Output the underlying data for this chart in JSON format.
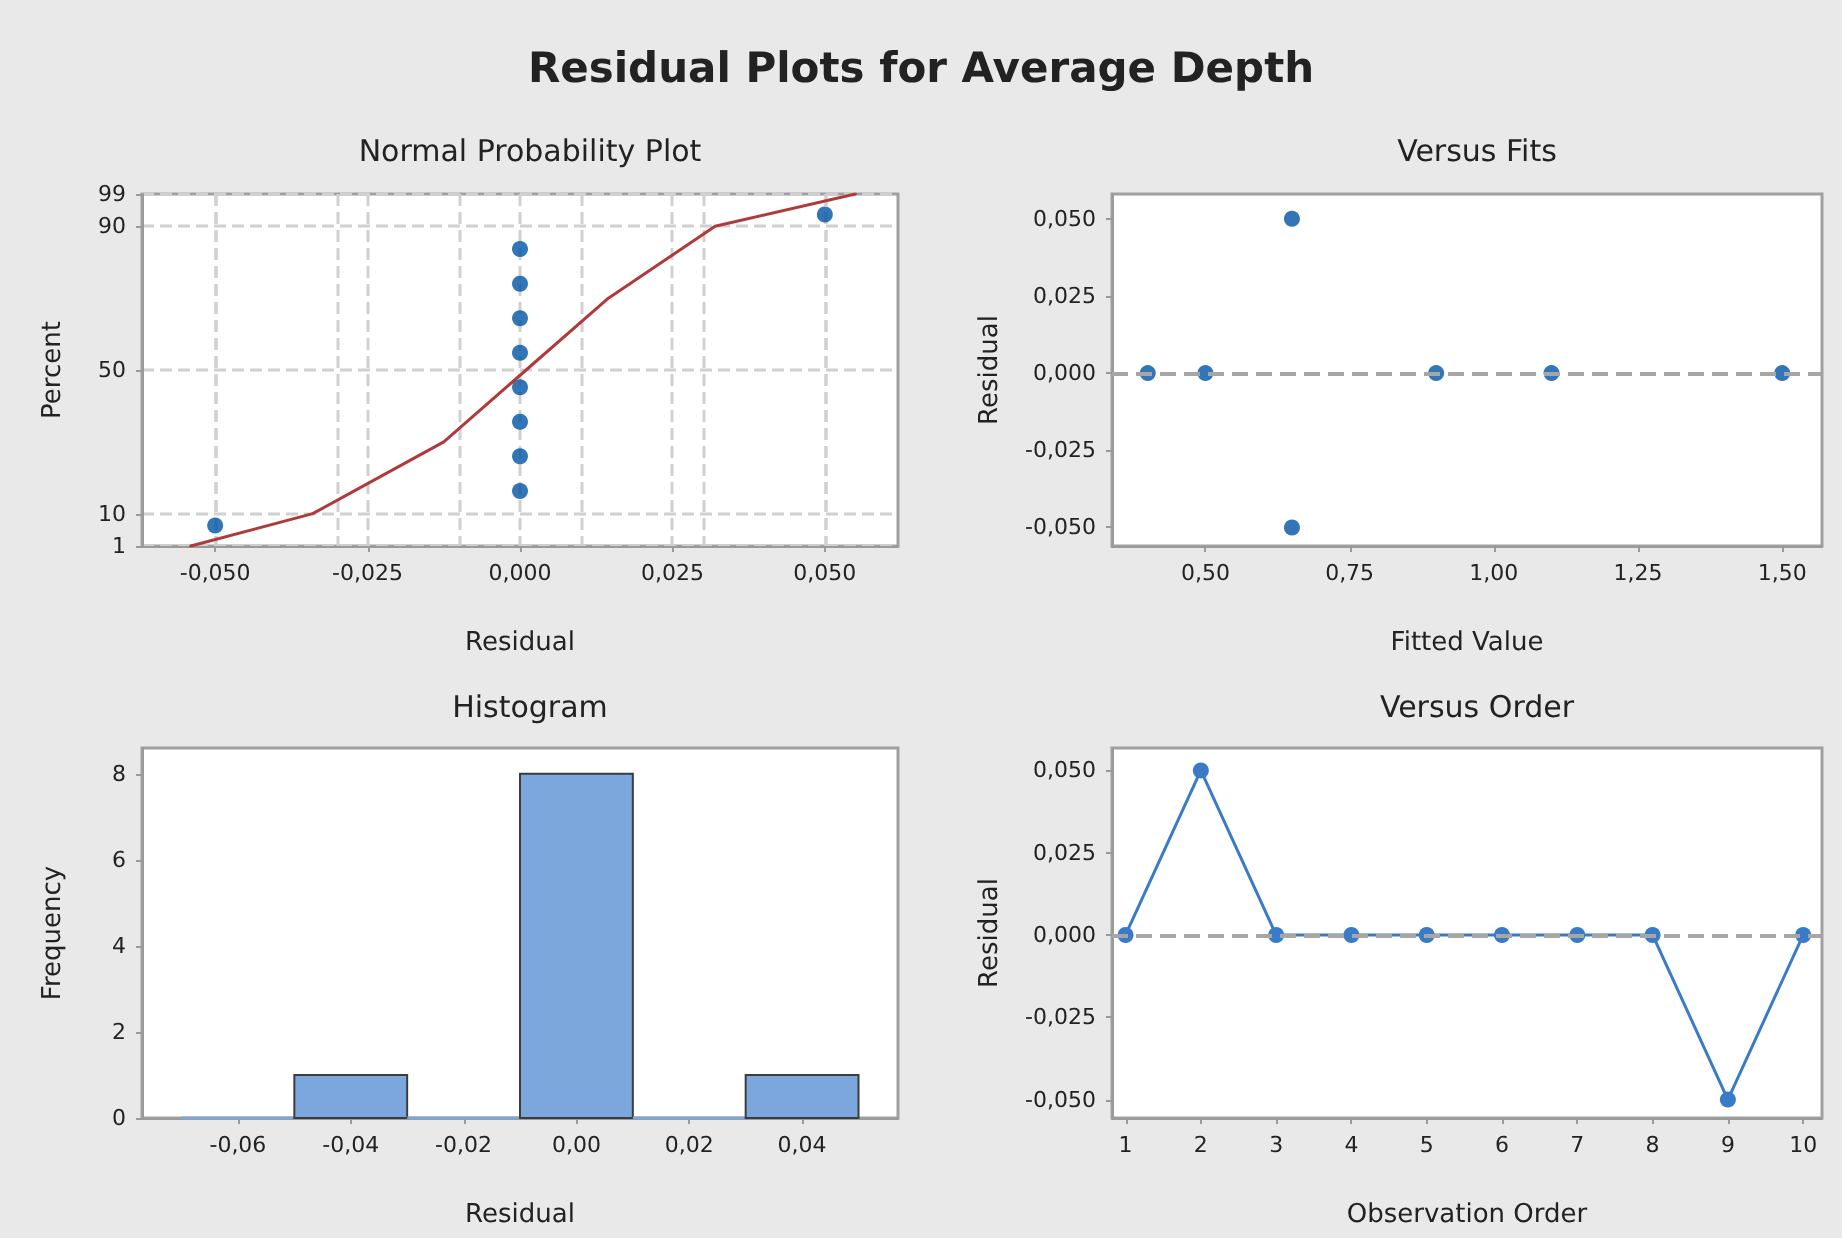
{
  "chart_data": [
    {
      "type": "scatter",
      "title": "Normal Probability Plot",
      "xlabel": "Residual",
      "ylabel": "Percent",
      "annotations": [
        "Residual Plots for Average Depth"
      ],
      "x": [
        -0.05,
        0,
        0,
        0,
        0,
        0,
        0,
        0,
        0,
        0.05
      ],
      "series": [
        {
          "type": "scatter",
          "color": "#0054a6",
          "values": [
            6.7,
            16.3,
            26.0,
            35.6,
            45.2,
            54.8,
            64.4,
            74.0,
            83.7,
            93.3
          ]
        },
        {
          "type": "line",
          "color": "#b03a3a",
          "x": [
            -0.054,
            -0.034,
            -0.0125,
            0.001,
            0.0145,
            0.032,
            0.055
          ],
          "values": [
            1,
            10,
            30,
            50,
            70,
            90,
            99
          ],
          "marker": "none"
        }
      ],
      "xlim": [
        -0.062,
        0.062
      ],
      "xticks": [
        {
          "value": -0.05,
          "label": "-0,050"
        },
        {
          "value": -0.025,
          "label": "-0,025"
        },
        {
          "value": 0,
          "label": "0,000"
        },
        {
          "value": 0.025,
          "label": "0,025"
        },
        {
          "value": 0.05,
          "label": "0,050"
        }
      ],
      "ylim": [
        1,
        99
      ],
      "yticks": [
        1,
        10,
        50,
        90,
        99
      ],
      "grid": true,
      "marker": "circle"
    },
    {
      "type": "scatter",
      "title": "Versus Fits",
      "xlabel": "Fitted Value",
      "ylabel": "Residual",
      "x": [
        0.4,
        0.5,
        0.65,
        0.65,
        0.9,
        1.1,
        1.5
      ],
      "series": [
        {
          "color": "#0054a6",
          "values": [
            0,
            0,
            0.05,
            -0.05,
            0,
            0,
            0
          ]
        }
      ],
      "xlim": [
        0.338,
        1.569
      ],
      "xticks": [
        {
          "value": 0.5,
          "label": "0,50"
        },
        {
          "value": 0.75,
          "label": "0,75"
        },
        {
          "value": 1,
          "label": "1,00"
        },
        {
          "value": 1.25,
          "label": "1,25"
        },
        {
          "value": 1.5,
          "label": "1,50"
        }
      ],
      "ylim": [
        -0.056,
        0.058
      ],
      "yticks": [
        {
          "value": -0.05,
          "label": "-0,050"
        },
        {
          "value": -0.025,
          "label": "-0,025"
        },
        {
          "value": 0,
          "label": "0,000"
        },
        {
          "value": 0.025,
          "label": "0,025"
        },
        {
          "value": 0.05,
          "label": "0,050"
        }
      ],
      "ref_lines": [
        {
          "axis": "y",
          "value": 0,
          "color": "#a6a6a6",
          "line_style": "dashed"
        }
      ],
      "grid": false,
      "marker": "circle"
    },
    {
      "type": "histogram",
      "title": "Histogram",
      "xlabel": "Residual",
      "ylabel": "Frequency",
      "bins": [
        -0.07,
        -0.05,
        -0.03,
        -0.01,
        0.01,
        0.03,
        0.05
      ],
      "values": [
        0,
        1,
        0,
        8,
        0,
        1
      ],
      "color": "#7ba7dc",
      "xlim": [
        -0.077,
        0.057
      ],
      "xticks": [
        {
          "value": -0.06,
          "label": "-0,06"
        },
        {
          "value": -0.04,
          "label": "-0,04"
        },
        {
          "value": -0.02,
          "label": "-0,02"
        },
        {
          "value": 0,
          "label": "0,00"
        },
        {
          "value": 0.02,
          "label": "0,02"
        },
        {
          "value": 0.04,
          "label": "0,04"
        }
      ],
      "ylim": [
        0,
        8.6
      ],
      "yticks": [
        0,
        2,
        4,
        6,
        8
      ],
      "grid": false
    },
    {
      "type": "line",
      "title": "Versus Order",
      "xlabel": "Observation Order",
      "ylabel": "Residual",
      "x": [
        1,
        2,
        3,
        4,
        5,
        6,
        7,
        8,
        9,
        10
      ],
      "series": [
        {
          "color": "#3a7bc8",
          "values": [
            0,
            0.05,
            0,
            0,
            0,
            0,
            0,
            0,
            -0.05,
            0
          ]
        }
      ],
      "xlim": [
        0.82,
        10.25
      ],
      "xticks": [
        1,
        2,
        3,
        4,
        5,
        6,
        7,
        8,
        9,
        10
      ],
      "ylim": [
        -0.0556,
        0.0568
      ],
      "yticks": [
        {
          "value": -0.05,
          "label": "-0,050"
        },
        {
          "value": -0.025,
          "label": "-0,025"
        },
        {
          "value": 0,
          "label": "0,000"
        },
        {
          "value": 0.025,
          "label": "0,025"
        },
        {
          "value": 0.05,
          "label": "0,050"
        }
      ],
      "ref_lines": [
        {
          "axis": "y",
          "value": 0,
          "color": "#a6a6a6",
          "line_style": "dashed"
        }
      ],
      "grid": false,
      "marker": "circle",
      "line_style": "solid"
    }
  ]
}
